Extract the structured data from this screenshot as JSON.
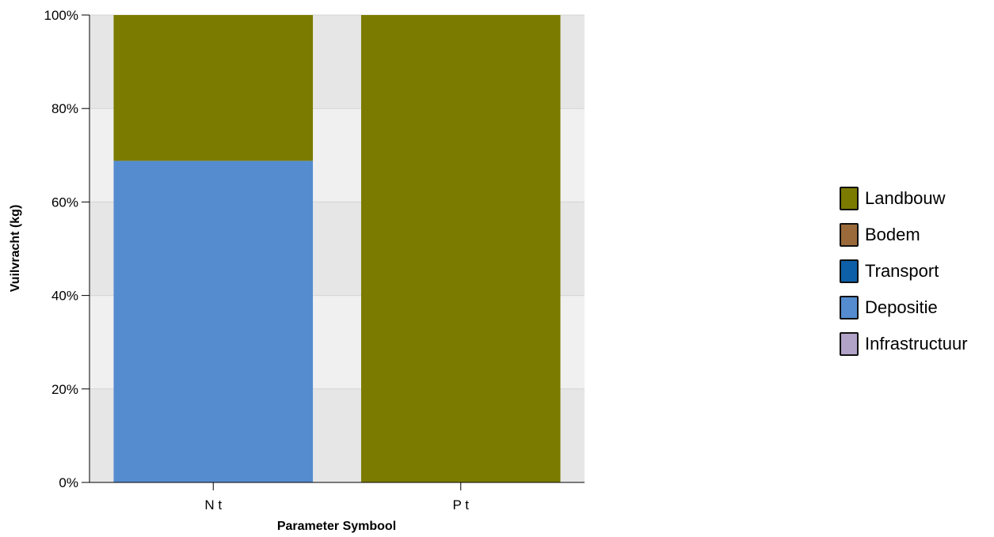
{
  "chart_data": {
    "type": "bar",
    "stacked": true,
    "percent_scale": true,
    "categories": [
      "N t",
      "P t"
    ],
    "series": [
      {
        "name": "Landbouw",
        "color": "#7b7b00",
        "values": [
          31.2,
          100
        ]
      },
      {
        "name": "Bodem",
        "color": "#9a6a3a",
        "values": [
          0,
          0
        ]
      },
      {
        "name": "Transport",
        "color": "#0d5fa8",
        "values": [
          0,
          0
        ]
      },
      {
        "name": "Depositie",
        "color": "#558cd0",
        "values": [
          68.8,
          0
        ]
      },
      {
        "name": "Infrastructuur",
        "color": "#b1a2c8",
        "values": [
          0,
          0
        ]
      }
    ],
    "stack_order_bottom_to_top": [
      "Infrastructuur",
      "Depositie",
      "Transport",
      "Bodem",
      "Landbouw"
    ],
    "xlabel": "Parameter Symbool",
    "ylabel": "Vuilvracht (kg)",
    "ylim": [
      0,
      100
    ],
    "yticks": [
      "0%",
      "20%",
      "40%",
      "60%",
      "80%",
      "100%"
    ],
    "grid": true,
    "legend_position": "right"
  }
}
